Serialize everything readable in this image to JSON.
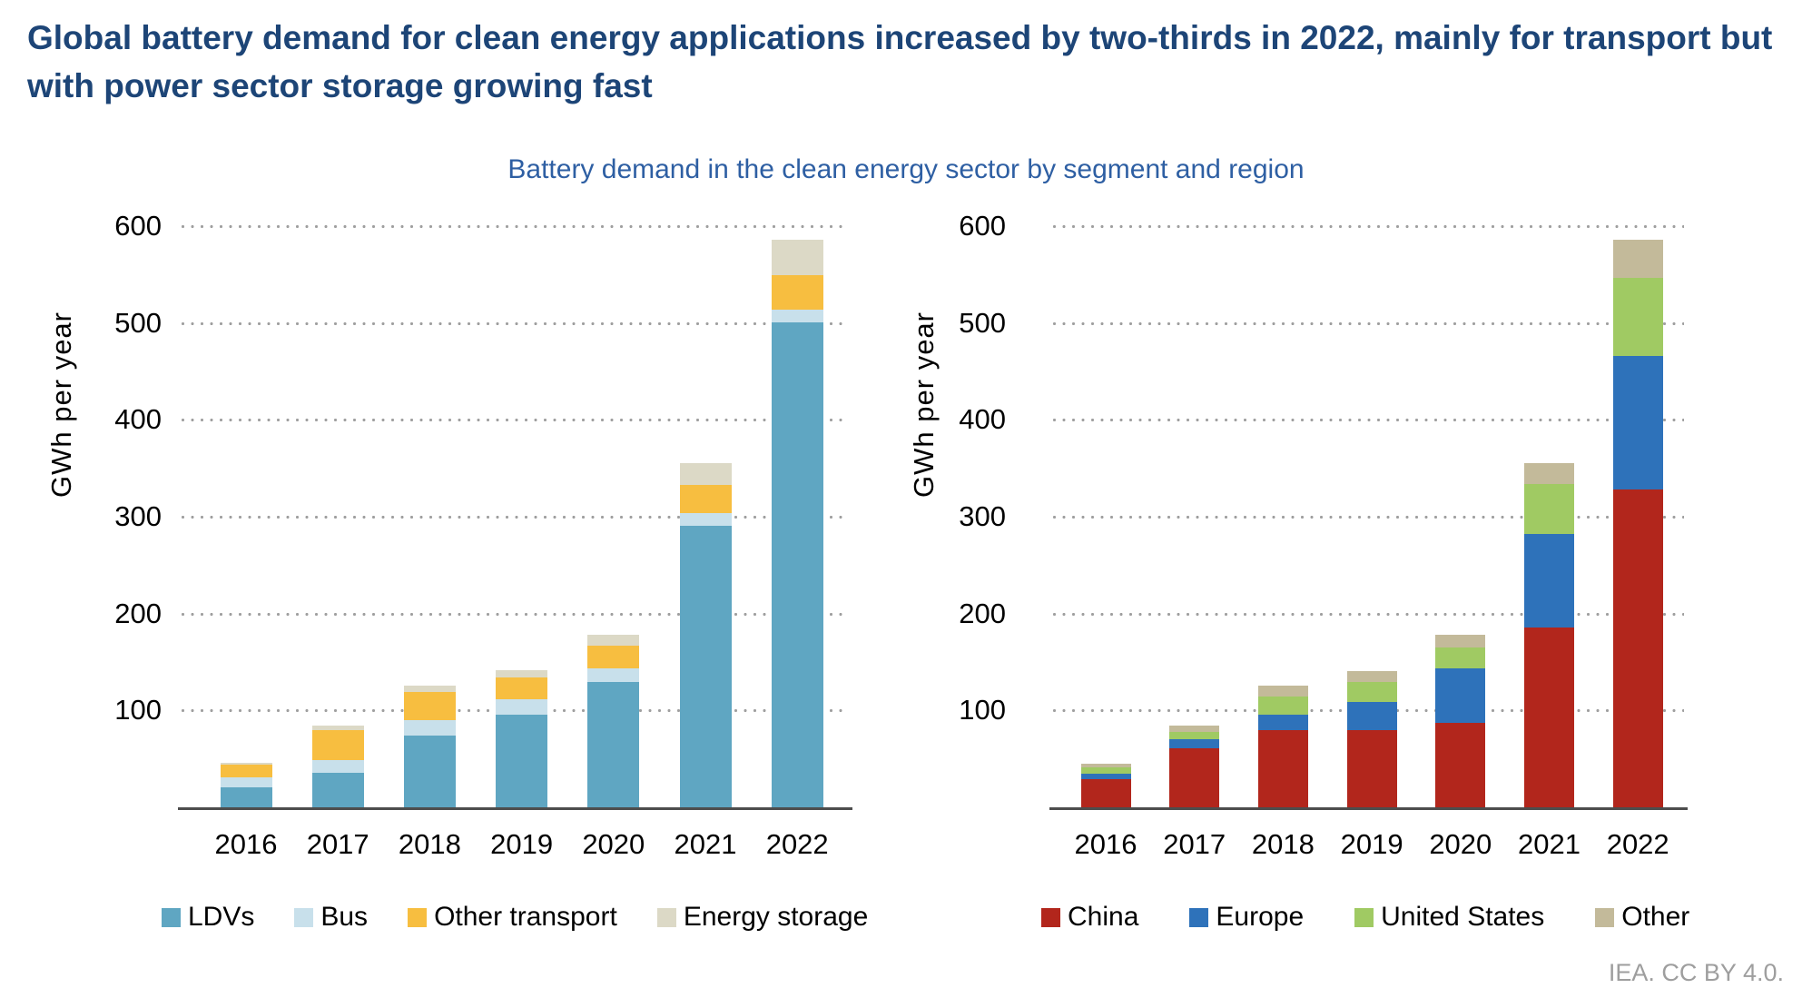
{
  "title": "Global battery demand for clean energy applications increased by two-thirds in 2022, mainly for transport but with power sector storage growing fast",
  "subtitle": "Battery demand in the clean energy sector by segment and region",
  "footer": "IEA. CC BY 4.0.",
  "axis": {
    "ylabel": "GWh per year",
    "yticks": [
      600,
      500,
      400,
      300,
      200,
      100
    ],
    "ymax": 600
  },
  "years": [
    "2016",
    "2017",
    "2018",
    "2019",
    "2020",
    "2021",
    "2022"
  ],
  "colors": {
    "ldvs": "#5fa6c2",
    "bus": "#c8e0eb",
    "other_transport": "#f7be40",
    "energy_storage": "#dcd9c6",
    "china": "#b2261c",
    "europe": "#2e72ba",
    "united_states": "#a0ca63",
    "other": "#c3ba9a",
    "gridline": "#9f9f9f",
    "title_navy": "#1d4577",
    "subtitle_blue": "#2e5fa3"
  },
  "chart_data": [
    {
      "type": "bar",
      "stacked": true,
      "title": "Battery demand in the clean energy sector by segment (left panel)",
      "xlabel": "",
      "ylabel": "GWh per year",
      "ylim": [
        0,
        600
      ],
      "yticks": [
        100,
        200,
        300,
        400,
        500,
        600
      ],
      "grid": "dotted-horizontal",
      "legend_position": "bottom",
      "categories": [
        "2016",
        "2017",
        "2018",
        "2019",
        "2020",
        "2021",
        "2022"
      ],
      "series": [
        {
          "name": "LDVs",
          "color": "#5fa6c2",
          "values": [
            21,
            36,
            74,
            96,
            129,
            291,
            501
          ]
        },
        {
          "name": "Bus",
          "color": "#c8e0eb",
          "values": [
            10,
            13,
            16,
            16,
            14,
            13,
            13
          ]
        },
        {
          "name": "Other transport",
          "color": "#f7be40",
          "values": [
            13,
            31,
            29,
            22,
            24,
            29,
            35
          ]
        },
        {
          "name": "Energy storage",
          "color": "#dcd9c6",
          "values": [
            2,
            4,
            7,
            8,
            11,
            22,
            37
          ]
        }
      ]
    },
    {
      "type": "bar",
      "stacked": true,
      "title": "Battery demand in the clean energy sector by region (right panel)",
      "xlabel": "",
      "ylabel": "GWh per year",
      "ylim": [
        0,
        600
      ],
      "yticks": [
        100,
        200,
        300,
        400,
        500,
        600
      ],
      "grid": "dotted-horizontal",
      "legend_position": "bottom",
      "categories": [
        "2016",
        "2017",
        "2018",
        "2019",
        "2020",
        "2021",
        "2022"
      ],
      "series": [
        {
          "name": "China",
          "color": "#b2261c",
          "values": [
            29,
            61,
            80,
            80,
            87,
            186,
            328
          ]
        },
        {
          "name": "Europe",
          "color": "#2e72ba",
          "values": [
            6,
            9,
            16,
            29,
            56,
            96,
            138
          ]
        },
        {
          "name": "United States",
          "color": "#a0ca63",
          "values": [
            6,
            8,
            18,
            20,
            22,
            52,
            81
          ]
        },
        {
          "name": "Other",
          "color": "#c3ba9a",
          "values": [
            4,
            6,
            12,
            12,
            13,
            21,
            39
          ]
        }
      ]
    }
  ]
}
